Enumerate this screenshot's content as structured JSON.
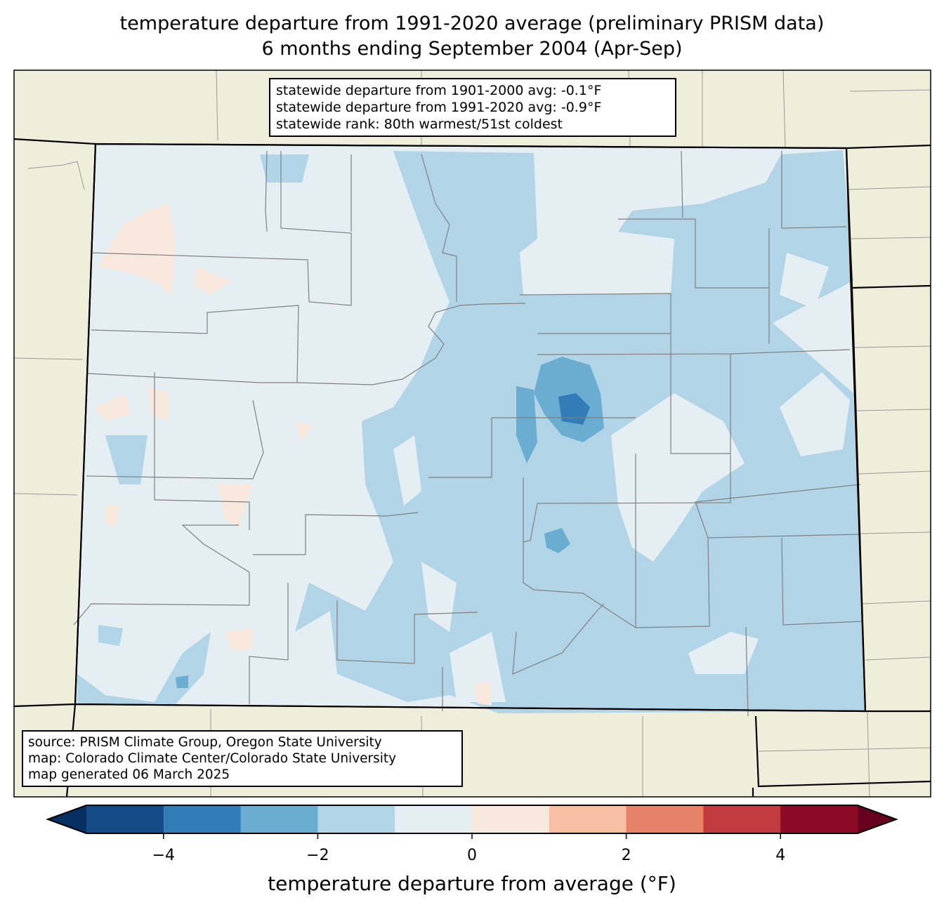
{
  "title": {
    "line1": "temperature departure from 1991-2020 average (preliminary PRISM data)",
    "line2": "6 months ending September 2004 (Apr-Sep)"
  },
  "stats": {
    "line1": "statewide departure from 1901-2000 avg: -0.1°F",
    "line2": "statewide departure from 1991-2020 avg: -0.9°F",
    "line3": "statewide rank: 80th warmest/51st coldest"
  },
  "source": {
    "line1": "source: PRISM Climate Group, Oregon State University",
    "line2": "map: Colorado Climate Center/Colorado State University",
    "line3": "map generated 06 March 2025"
  },
  "colorbar": {
    "label": "temperature departure from average (°F)",
    "bounds": [
      -5,
      5
    ],
    "step": 1,
    "colors": [
      "#134b87",
      "#327cb7",
      "#6bacd1",
      "#b1d4e7",
      "#e5eef3",
      "#f9e8de",
      "#f8bea4",
      "#e58267",
      "#c23b3f",
      "#8a0b25"
    ],
    "extend_low_color": "#053061",
    "extend_high_color": "#67001f",
    "ticks": [
      {
        "value": -4,
        "label": "−4"
      },
      {
        "value": -2,
        "label": "−2"
      },
      {
        "value": 0,
        "label": "0"
      },
      {
        "value": 2,
        "label": "2"
      },
      {
        "value": 4,
        "label": "4"
      }
    ]
  },
  "map_colors": {
    "land": "#efeedb",
    "near_zero": "#e5eef3",
    "cool": "#b1d4e7",
    "cooler": "#6bacd1",
    "coldest": "#327cb7",
    "warm": "#f9e8de"
  }
}
